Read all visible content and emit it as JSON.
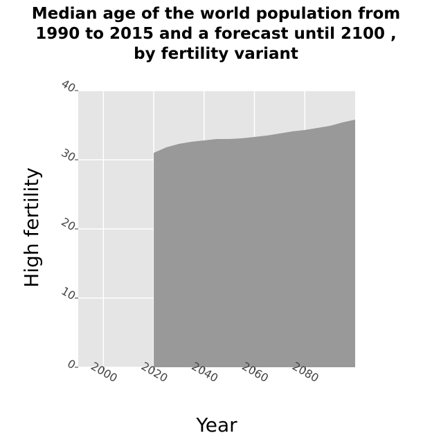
{
  "chart_data": {
    "type": "area",
    "title": "Median age of the world population from 1990 to 2015 and a forecast until 2100 , by fertility variant",
    "xlabel": "Year",
    "ylabel": "High fertility",
    "xlim": [
      1990,
      2100
    ],
    "ylim": [
      0,
      40
    ],
    "x_ticks": [
      2000,
      2020,
      2040,
      2060,
      2080
    ],
    "y_ticks": [
      0,
      10,
      20,
      30,
      40
    ],
    "x_tick_labels": [
      "2000",
      "2020",
      "2040",
      "2060",
      "2080"
    ],
    "y_tick_labels": [
      "0",
      "10",
      "20",
      "30",
      "40"
    ],
    "grid": true,
    "series": [
      {
        "x": [
          2020,
          2025,
          2030,
          2035,
          2040,
          2045,
          2050,
          2055,
          2060,
          2065,
          2070,
          2075,
          2080,
          2085,
          2090,
          2095,
          2100
        ],
        "values": [
          31.0,
          31.8,
          32.3,
          32.6,
          32.8,
          33.0,
          33.0,
          33.1,
          33.3,
          33.5,
          33.8,
          34.1,
          34.3,
          34.6,
          34.9,
          35.4,
          35.8
        ]
      }
    ],
    "colors": {
      "fill": "#999999",
      "panel": "#e5e5e5",
      "grid": "#ffffff"
    }
  }
}
